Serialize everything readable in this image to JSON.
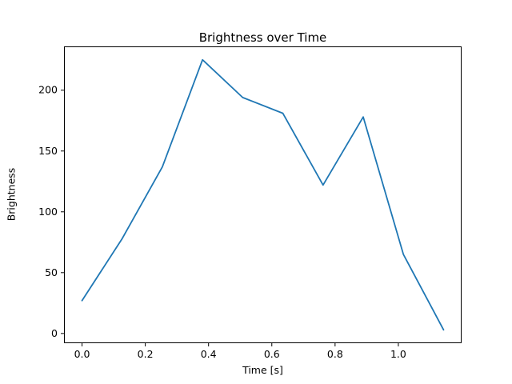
{
  "chart_data": {
    "type": "line",
    "title": "Brightness over Time",
    "xlabel": "Time [s]",
    "ylabel": "Brightness",
    "x": [
      0.0,
      0.127,
      0.254,
      0.381,
      0.508,
      0.635,
      0.762,
      0.889,
      1.016,
      1.143
    ],
    "y": [
      27,
      78,
      137,
      225,
      194,
      181,
      122,
      178,
      65,
      3
    ],
    "xlim": [
      -0.057,
      1.2
    ],
    "ylim": [
      -8,
      236
    ],
    "xticks": [
      0.0,
      0.2,
      0.4,
      0.6,
      0.8,
      1.0
    ],
    "yticks": [
      0,
      50,
      100,
      150,
      200
    ],
    "line_color": "#1f77b4",
    "axis_color": "#000000",
    "grid": false,
    "legend": null
  }
}
